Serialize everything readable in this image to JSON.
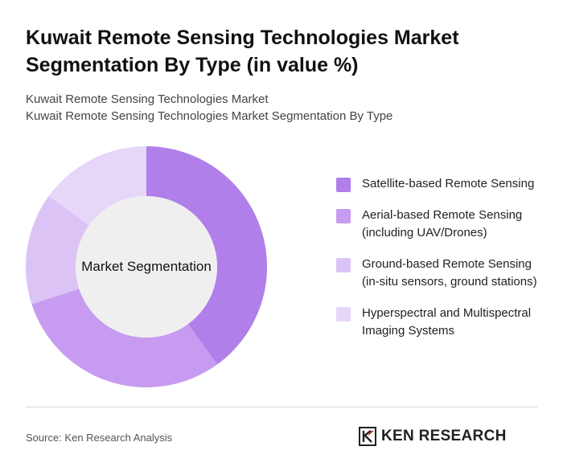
{
  "header": {
    "title": "Kuwait Remote Sensing Technologies Market Segmentation By Type (in value %)",
    "subtitle_line1": "Kuwait Remote Sensing Technologies Market",
    "subtitle_line2": "Kuwait Remote Sensing Technologies Market Segmentation By Type"
  },
  "chart_data": {
    "type": "pie",
    "variant": "donut",
    "center_label": "Market Segmentation",
    "categories": [
      "Satellite-based Remote Sensing",
      "Aerial-based Remote Sensing (including UAV/Drones)",
      "Ground-based Remote Sensing (in-situ sensors, ground stations)",
      "Hyperspectral and Multispectral Imaging Systems"
    ],
    "values": [
      40,
      30,
      15,
      15
    ],
    "colors": [
      "#b07fea",
      "#c79cf0",
      "#dcc3f6",
      "#e6d6f8"
    ],
    "legend_position": "right"
  },
  "footer": {
    "source": "Source: Ken Research Analysis",
    "brand": "KEN RESEARCH",
    "brand_icon": "ken-research-logo-icon"
  }
}
